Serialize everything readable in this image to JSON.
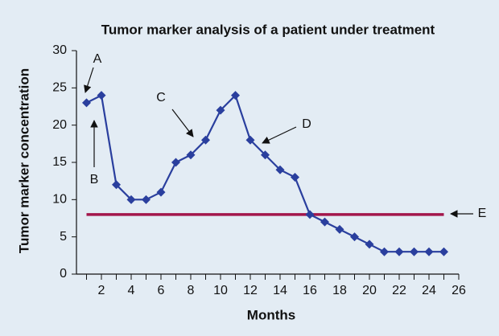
{
  "chart_data": {
    "type": "line",
    "title": "Tumor marker analysis of a patient under treatment",
    "xlabel": "Months",
    "ylabel": "Tumor marker concentration",
    "x": [
      1,
      2,
      3,
      4,
      5,
      6,
      7,
      8,
      9,
      10,
      11,
      12,
      13,
      14,
      15,
      16,
      17,
      18,
      19,
      20,
      21,
      22,
      23,
      24,
      25
    ],
    "series": [
      {
        "color": "#2a3f9e",
        "values": [
          23,
          24,
          12,
          10,
          10,
          11,
          15,
          16,
          18,
          22,
          24,
          18,
          16,
          14,
          13,
          8,
          7,
          6,
          5,
          4,
          3,
          3,
          3,
          3,
          3
        ]
      }
    ],
    "xlim": [
      0,
      26
    ],
    "ylim": [
      0,
      30
    ],
    "xticks": [
      2,
      4,
      6,
      8,
      10,
      12,
      14,
      16,
      18,
      20,
      22,
      24,
      26
    ],
    "xminorticks": [
      1,
      3,
      5,
      7,
      9,
      11,
      13,
      15,
      17,
      19,
      21,
      23,
      25
    ],
    "yticks": [
      0,
      5,
      10,
      15,
      20,
      25,
      30
    ],
    "reference_line": {
      "value": 8,
      "from": 1,
      "to": 25,
      "color": "#a3164b"
    },
    "annotations": [
      {
        "text": "A"
      },
      {
        "text": "B"
      },
      {
        "text": "C"
      },
      {
        "text": "D"
      },
      {
        "text": "E"
      }
    ]
  }
}
